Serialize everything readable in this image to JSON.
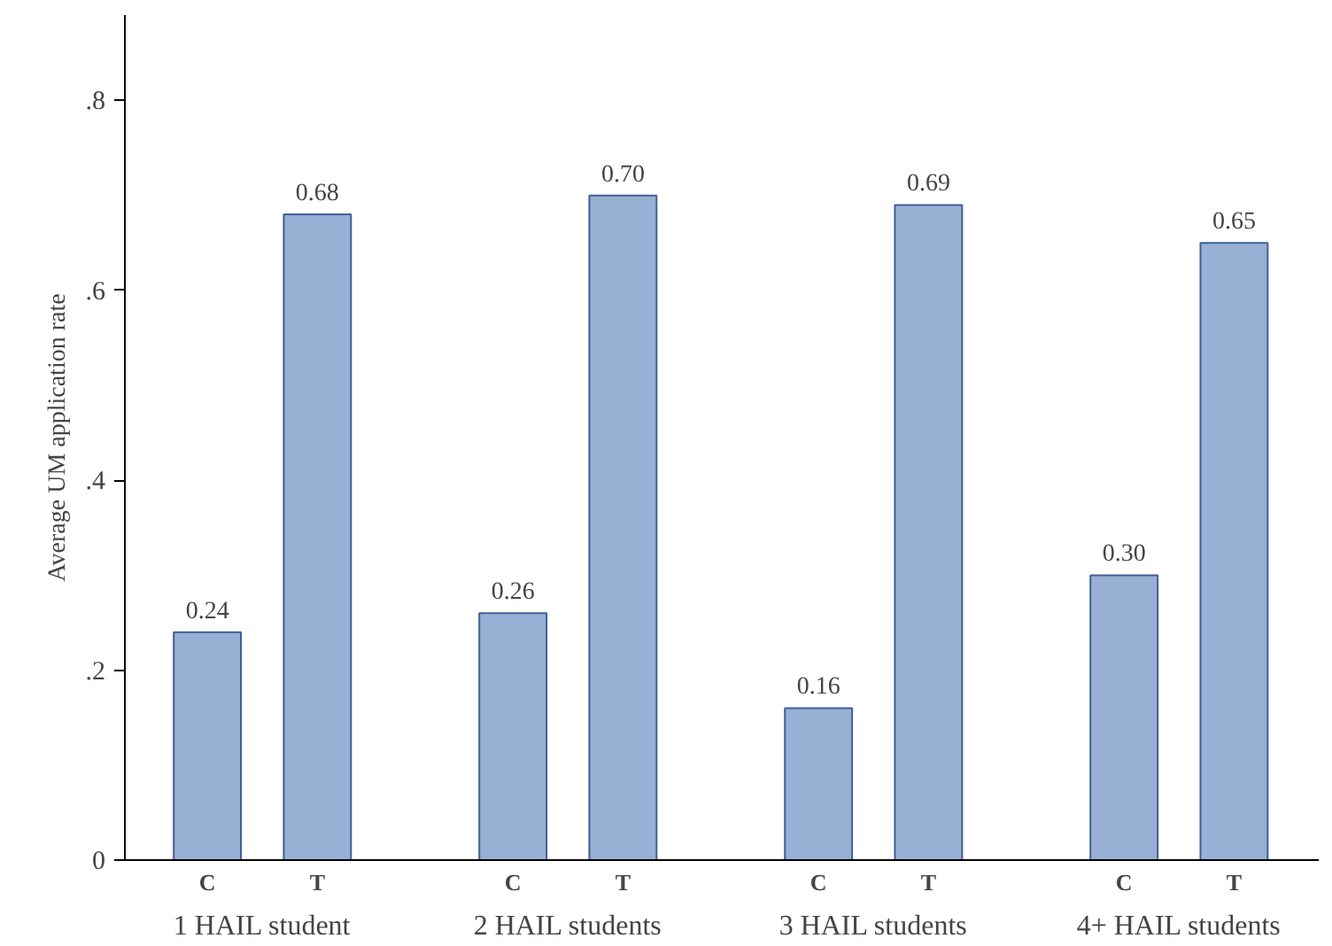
{
  "chart_data": {
    "type": "bar",
    "ylabel": "Average UM application rate",
    "categories": [
      "1 HAIL student",
      "2 HAIL students",
      "3 HAIL students",
      "4+ HAIL students"
    ],
    "series": [
      {
        "name": "C",
        "color": "#98b0d4",
        "values": [
          0.24,
          0.26,
          0.16,
          0.3
        ],
        "value_labels": [
          "0.24",
          "0.26",
          "0.16",
          "0.30"
        ]
      },
      {
        "name": "T",
        "color": "#98b0d4",
        "values": [
          0.68,
          0.7,
          0.69,
          0.65
        ],
        "value_labels": [
          "0.68",
          "0.70",
          "0.69",
          "0.65"
        ]
      }
    ],
    "ylim": [
      0,
      0.89
    ],
    "yticks": [
      0,
      {
        "value": 0.2,
        "label": ".2"
      },
      {
        "value": 0.4,
        "label": ".4"
      },
      {
        "value": 0.6,
        "label": ".6"
      },
      {
        "value": 0.8,
        "label": ".8"
      }
    ],
    "grid": false
  }
}
